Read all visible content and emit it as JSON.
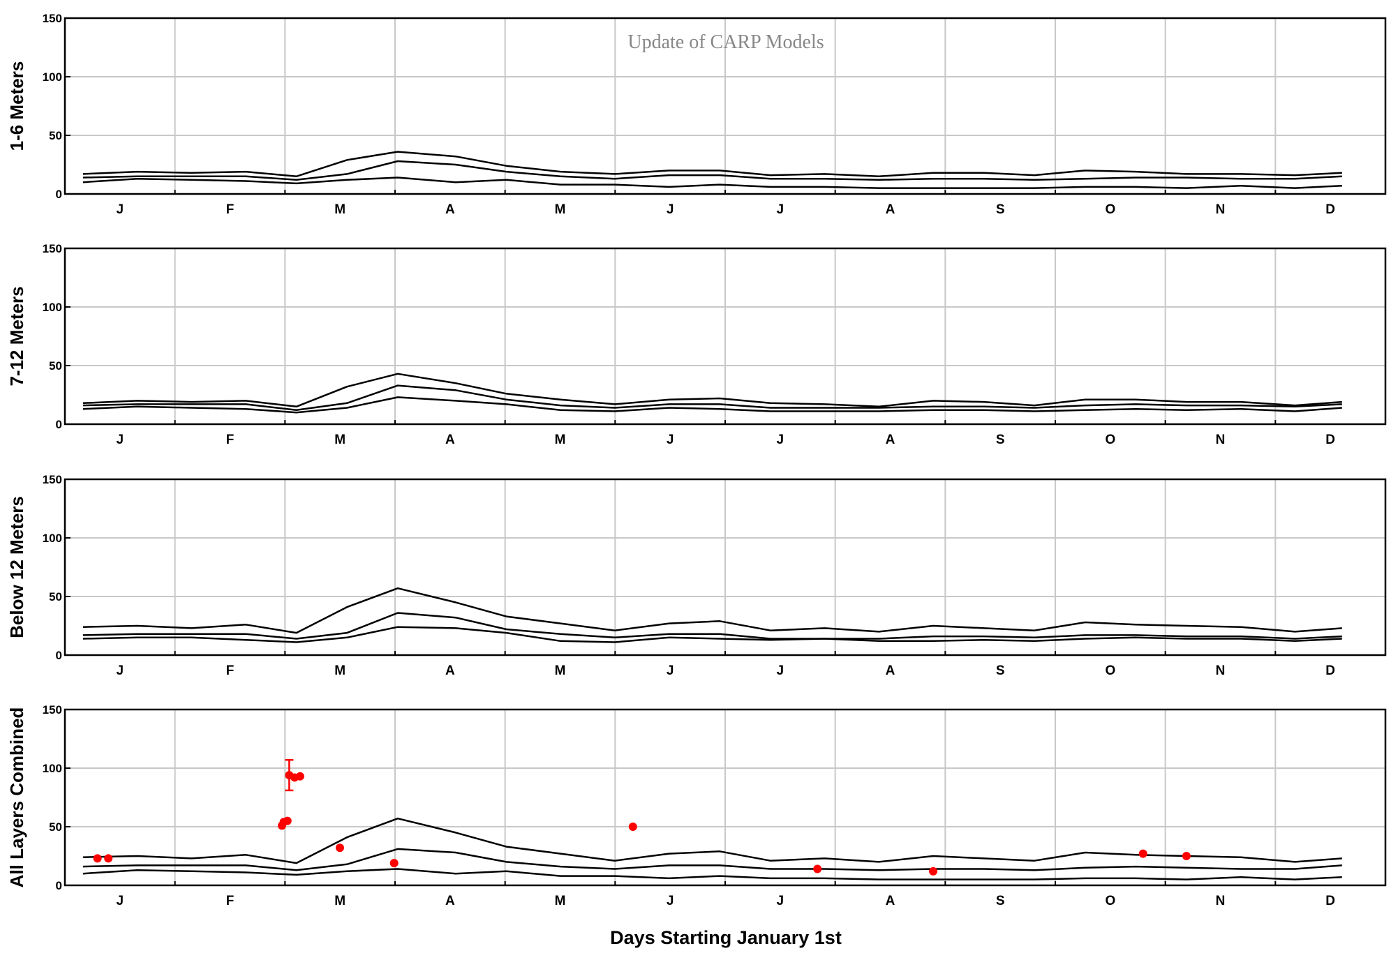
{
  "colors": {
    "axis": "#000000",
    "grid": "#c8c8c8",
    "model_line": "#000000",
    "observation": "#ff0000"
  },
  "shared": {
    "xlabel": "Days Starting January 1st",
    "annotation": "Update of CARP Models",
    "months": [
      "J",
      "F",
      "M",
      "A",
      "M",
      "J",
      "J",
      "A",
      "S",
      "O",
      "N",
      "D"
    ],
    "yticks": [
      "0",
      "50",
      "100",
      "150"
    ],
    "xlim": [
      0,
      365
    ],
    "ylim": [
      0,
      150
    ]
  },
  "chart_data": [
    {
      "type": "line",
      "ylabel": "1-6 Meters",
      "annotation_shown": true,
      "x": [
        5,
        20,
        35,
        50,
        64,
        78,
        92,
        108,
        122,
        137,
        152,
        167,
        181,
        195,
        210,
        225,
        240,
        254,
        268,
        282,
        296,
        310,
        325,
        340,
        353
      ],
      "series": [
        {
          "values": [
            17,
            19,
            18,
            19,
            15,
            29,
            36,
            32,
            24,
            19,
            17,
            20,
            20,
            16,
            17,
            15,
            18,
            18,
            16,
            20,
            19,
            17,
            17,
            16,
            18
          ]
        },
        {
          "values": [
            14,
            15,
            15,
            15,
            12,
            17,
            28,
            25,
            19,
            15,
            13,
            16,
            16,
            13,
            13,
            12,
            13,
            13,
            12,
            13,
            14,
            14,
            13,
            13,
            15
          ]
        },
        {
          "values": [
            10,
            13,
            12,
            11,
            9,
            12,
            14,
            10,
            12,
            8,
            8,
            6,
            8,
            6,
            6,
            5,
            5,
            5,
            5,
            6,
            6,
            5,
            7,
            5,
            7
          ]
        }
      ]
    },
    {
      "type": "line",
      "ylabel": "7-12 Meters",
      "annotation_shown": false,
      "x": [
        5,
        20,
        35,
        50,
        64,
        78,
        92,
        108,
        122,
        137,
        152,
        167,
        181,
        195,
        210,
        225,
        240,
        254,
        268,
        282,
        296,
        310,
        325,
        340,
        353
      ],
      "series": [
        {
          "values": [
            18,
            20,
            19,
            20,
            15,
            32,
            43,
            35,
            26,
            21,
            17,
            21,
            22,
            18,
            17,
            15,
            20,
            19,
            16,
            21,
            21,
            19,
            19,
            16,
            19
          ]
        },
        {
          "values": [
            16,
            17,
            17,
            17,
            12,
            18,
            33,
            29,
            21,
            16,
            14,
            17,
            17,
            14,
            14,
            14,
            15,
            15,
            14,
            16,
            17,
            16,
            16,
            15,
            17
          ]
        },
        {
          "values": [
            13,
            15,
            14,
            13,
            10,
            14,
            23,
            20,
            17,
            12,
            11,
            14,
            13,
            11,
            11,
            11,
            12,
            12,
            11,
            12,
            13,
            12,
            13,
            11,
            14
          ]
        }
      ]
    },
    {
      "type": "line",
      "ylabel": "Below 12 Meters",
      "annotation_shown": false,
      "x": [
        5,
        20,
        35,
        50,
        64,
        78,
        92,
        108,
        122,
        137,
        152,
        167,
        181,
        195,
        210,
        225,
        240,
        254,
        268,
        282,
        296,
        310,
        325,
        340,
        353
      ],
      "series": [
        {
          "values": [
            24,
            25,
            23,
            26,
            19,
            41,
            57,
            45,
            33,
            27,
            21,
            27,
            29,
            21,
            23,
            20,
            25,
            23,
            21,
            28,
            26,
            25,
            24,
            20,
            23
          ]
        },
        {
          "values": [
            17,
            18,
            18,
            18,
            14,
            19,
            36,
            32,
            22,
            18,
            15,
            18,
            18,
            14,
            14,
            14,
            16,
            16,
            15,
            17,
            17,
            16,
            16,
            14,
            16
          ]
        },
        {
          "values": [
            14,
            15,
            15,
            13,
            11,
            15,
            24,
            23,
            19,
            12,
            11,
            15,
            14,
            13,
            14,
            12,
            12,
            13,
            12,
            14,
            15,
            14,
            14,
            12,
            14
          ]
        }
      ]
    },
    {
      "type": "line",
      "ylabel": "All Layers Combined",
      "annotation_shown": false,
      "x": [
        5,
        20,
        35,
        50,
        64,
        78,
        92,
        108,
        122,
        137,
        152,
        167,
        181,
        195,
        210,
        225,
        240,
        254,
        268,
        282,
        296,
        310,
        325,
        340,
        353
      ],
      "series": [
        {
          "values": [
            24,
            25,
            23,
            26,
            19,
            41,
            57,
            45,
            33,
            27,
            21,
            27,
            29,
            21,
            23,
            20,
            25,
            23,
            21,
            28,
            26,
            25,
            24,
            20,
            23
          ]
        },
        {
          "values": [
            16,
            17,
            17,
            17,
            13,
            18,
            31,
            28,
            20,
            16,
            14,
            17,
            17,
            14,
            14,
            13,
            14,
            14,
            13,
            15,
            16,
            15,
            14,
            14,
            17
          ]
        },
        {
          "values": [
            10,
            13,
            12,
            11,
            9,
            12,
            14,
            10,
            12,
            8,
            8,
            6,
            8,
            6,
            6,
            5,
            5,
            5,
            5,
            6,
            6,
            5,
            7,
            5,
            7
          ]
        }
      ]
    }
  ],
  "observations": [
    {
      "x": 9,
      "y": 23
    },
    {
      "x": 12,
      "y": 23
    },
    {
      "x": 60,
      "y": 51
    },
    {
      "x": 60.5,
      "y": 54
    },
    {
      "x": 61.5,
      "y": 55
    },
    {
      "x": 62,
      "y": 94,
      "err": 13
    },
    {
      "x": 63.5,
      "y": 92
    },
    {
      "x": 65,
      "y": 93
    },
    {
      "x": 76,
      "y": 32
    },
    {
      "x": 91,
      "y": 19
    },
    {
      "x": 157,
      "y": 50
    },
    {
      "x": 208,
      "y": 14
    },
    {
      "x": 240,
      "y": 12
    },
    {
      "x": 298,
      "y": 27
    },
    {
      "x": 310,
      "y": 25
    }
  ]
}
